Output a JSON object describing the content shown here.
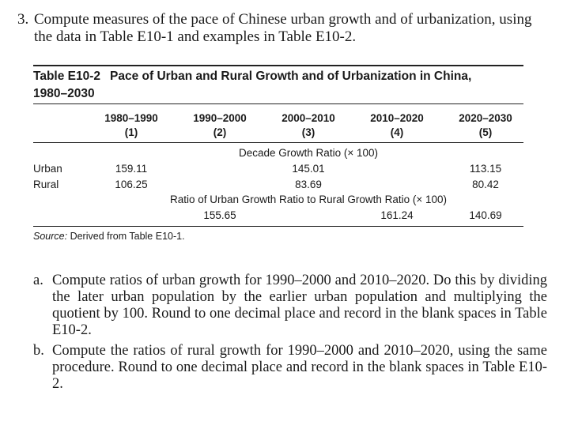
{
  "question": {
    "number": "3.",
    "text_line1": "Compute measures of the pace of Chinese urban growth and of urbanization, using",
    "text_line2": "the data in Table E10-1 and examples in Table E10-2."
  },
  "table": {
    "label": "Table E10-2",
    "title_line1": "Pace of Urban and Rural Growth and of Urbanization in China,",
    "title_line2": "1980–2030",
    "columns": [
      {
        "period": "1980–1990",
        "index": "(1)"
      },
      {
        "period": "1990–2000",
        "index": "(2)"
      },
      {
        "period": "2000–2010",
        "index": "(3)"
      },
      {
        "period": "2010–2020",
        "index": "(4)"
      },
      {
        "period": "2020–2030",
        "index": "(5)"
      }
    ],
    "section1_heading": "Decade Growth Ratio (× 100)",
    "rows": [
      {
        "label": "Urban",
        "values": [
          "159.11",
          "",
          "145.01",
          "",
          "113.15"
        ]
      },
      {
        "label": "Rural",
        "values": [
          "106.25",
          "",
          "83.69",
          "",
          "80.42"
        ]
      }
    ],
    "section2_heading": "Ratio of Urban Growth Ratio to Rural Growth Ratio (× 100)",
    "ratio_values": [
      "",
      "155.65",
      "",
      "161.24",
      "140.69"
    ],
    "source_label": "Source:",
    "source_text": "Derived from Table E10-1."
  },
  "subquestions": [
    {
      "letter": "a.",
      "text": "Compute ratios of urban growth for 1990–2000 and 2010–2020. Do this by dividing the later urban population by the earlier urban population and multiplying the quotient by 100. Round to one decimal place and record in the blank spaces in Table E10-2."
    },
    {
      "letter": "b.",
      "text": "Compute the ratios of rural growth for 1990–2000 and 2010–2020, using the same procedure. Round to one decimal place and record in the blank spaces in Table E10-2."
    }
  ]
}
